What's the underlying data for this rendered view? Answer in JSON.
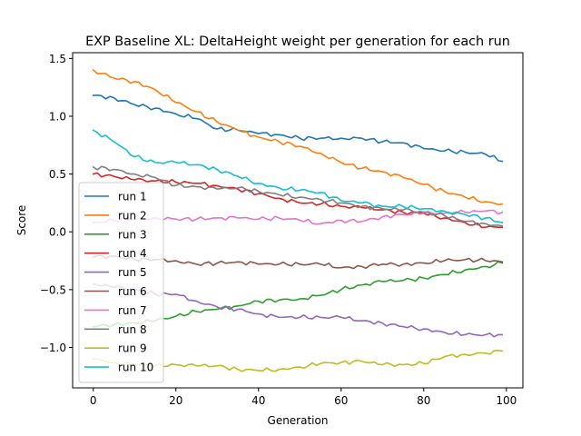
{
  "chart_data": {
    "type": "line",
    "title": "EXP Baseline XL: DeltaHeight weight per generation for each run",
    "xlabel": "Generation",
    "ylabel": "Score",
    "xlim": [
      -5,
      104
    ],
    "ylim": [
      -1.35,
      1.55
    ],
    "xticks": [
      0,
      20,
      40,
      60,
      80,
      100
    ],
    "yticks": [
      -1.0,
      -0.5,
      0.0,
      0.5,
      1.0,
      1.5
    ],
    "xtick_labels": [
      "0",
      "20",
      "40",
      "60",
      "80",
      "100"
    ],
    "ytick_labels": [
      "−1.0",
      "−0.5",
      "0.0",
      "0.5",
      "1.0",
      "1.5"
    ],
    "legend_position": "lower-left",
    "grid": false,
    "series": [
      {
        "name": "run 1",
        "color": "#1f77b4",
        "x": [
          0,
          5,
          10,
          15,
          20,
          25,
          30,
          35,
          40,
          45,
          50,
          55,
          60,
          65,
          70,
          75,
          80,
          85,
          90,
          95,
          99
        ],
        "y": [
          1.18,
          1.16,
          1.1,
          1.07,
          1.02,
          0.98,
          0.89,
          0.88,
          0.85,
          0.84,
          0.81,
          0.81,
          0.81,
          0.81,
          0.78,
          0.77,
          0.72,
          0.7,
          0.69,
          0.67,
          0.61
        ]
      },
      {
        "name": "run 2",
        "color": "#ff7f0e",
        "x": [
          0,
          5,
          10,
          15,
          20,
          25,
          30,
          35,
          40,
          45,
          50,
          55,
          60,
          65,
          70,
          75,
          80,
          85,
          90,
          95,
          99
        ],
        "y": [
          1.4,
          1.33,
          1.3,
          1.23,
          1.12,
          1.04,
          0.95,
          0.88,
          0.82,
          0.78,
          0.74,
          0.68,
          0.6,
          0.55,
          0.52,
          0.47,
          0.41,
          0.35,
          0.3,
          0.26,
          0.24
        ]
      },
      {
        "name": "run 3",
        "color": "#2ca02c",
        "x": [
          0,
          5,
          10,
          15,
          20,
          25,
          30,
          35,
          40,
          45,
          50,
          55,
          60,
          65,
          70,
          75,
          80,
          85,
          90,
          95,
          99
        ],
        "y": [
          -0.82,
          -0.8,
          -0.79,
          -0.77,
          -0.73,
          -0.69,
          -0.67,
          -0.64,
          -0.6,
          -0.59,
          -0.58,
          -0.55,
          -0.5,
          -0.46,
          -0.43,
          -0.42,
          -0.4,
          -0.37,
          -0.33,
          -0.3,
          -0.27
        ]
      },
      {
        "name": "run 4",
        "color": "#d62728",
        "x": [
          0,
          5,
          10,
          15,
          20,
          25,
          30,
          35,
          40,
          45,
          50,
          55,
          60,
          65,
          70,
          75,
          80,
          85,
          90,
          95,
          99
        ],
        "y": [
          0.5,
          0.48,
          0.45,
          0.44,
          0.43,
          0.42,
          0.4,
          0.37,
          0.33,
          0.29,
          0.25,
          0.24,
          0.22,
          0.21,
          0.19,
          0.17,
          0.16,
          0.12,
          0.08,
          0.04,
          0.04
        ]
      },
      {
        "name": "run 5",
        "color": "#9467bd",
        "x": [
          0,
          5,
          10,
          15,
          20,
          25,
          30,
          35,
          40,
          45,
          50,
          55,
          60,
          65,
          70,
          75,
          80,
          85,
          90,
          95,
          99
        ],
        "y": [
          -0.45,
          -0.48,
          -0.5,
          -0.54,
          -0.54,
          -0.6,
          -0.65,
          -0.67,
          -0.71,
          -0.74,
          -0.74,
          -0.74,
          -0.74,
          -0.77,
          -0.79,
          -0.82,
          -0.84,
          -0.87,
          -0.89,
          -0.89,
          -0.89
        ]
      },
      {
        "name": "run 6",
        "color": "#8c564b",
        "x": [
          0,
          5,
          10,
          15,
          20,
          25,
          30,
          35,
          40,
          45,
          50,
          55,
          60,
          65,
          70,
          75,
          80,
          85,
          90,
          95,
          99
        ],
        "y": [
          -0.22,
          -0.21,
          -0.24,
          -0.24,
          -0.25,
          -0.28,
          -0.27,
          -0.26,
          -0.28,
          -0.28,
          -0.28,
          -0.28,
          -0.31,
          -0.3,
          -0.28,
          -0.28,
          -0.27,
          -0.25,
          -0.24,
          -0.25,
          -0.26
        ]
      },
      {
        "name": "run 7",
        "color": "#e377c2",
        "x": [
          0,
          5,
          10,
          15,
          20,
          25,
          30,
          35,
          40,
          45,
          50,
          55,
          60,
          65,
          70,
          75,
          80,
          85,
          90,
          95,
          99
        ],
        "y": [
          0.08,
          0.1,
          0.11,
          0.12,
          0.11,
          0.11,
          0.12,
          0.12,
          0.11,
          0.12,
          0.1,
          0.07,
          0.1,
          0.09,
          0.13,
          0.15,
          0.16,
          0.16,
          0.17,
          0.18,
          0.17
        ]
      },
      {
        "name": "run 8",
        "color": "#7f7f7f",
        "x": [
          0,
          5,
          10,
          15,
          20,
          25,
          30,
          35,
          40,
          45,
          50,
          55,
          60,
          65,
          70,
          75,
          80,
          85,
          90,
          95,
          99
        ],
        "y": [
          0.56,
          0.54,
          0.5,
          0.47,
          0.4,
          0.39,
          0.37,
          0.38,
          0.35,
          0.32,
          0.3,
          0.28,
          0.25,
          0.22,
          0.2,
          0.19,
          0.17,
          0.14,
          0.09,
          0.07,
          0.05
        ]
      },
      {
        "name": "run 9",
        "color": "#bcbd22",
        "x": [
          0,
          5,
          10,
          15,
          20,
          25,
          30,
          35,
          40,
          45,
          50,
          55,
          60,
          65,
          70,
          75,
          80,
          85,
          90,
          95,
          99
        ],
        "y": [
          -1.1,
          -1.13,
          -1.15,
          -1.16,
          -1.15,
          -1.16,
          -1.16,
          -1.19,
          -1.2,
          -1.19,
          -1.17,
          -1.14,
          -1.13,
          -1.12,
          -1.15,
          -1.15,
          -1.14,
          -1.08,
          -1.06,
          -1.05,
          -1.03
        ]
      },
      {
        "name": "run 10",
        "color": "#17becf",
        "x": [
          0,
          5,
          10,
          15,
          20,
          25,
          30,
          35,
          40,
          45,
          50,
          55,
          60,
          65,
          70,
          75,
          80,
          85,
          90,
          95,
          99
        ],
        "y": [
          0.88,
          0.78,
          0.65,
          0.6,
          0.6,
          0.58,
          0.54,
          0.48,
          0.42,
          0.38,
          0.36,
          0.34,
          0.27,
          0.25,
          0.22,
          0.22,
          0.2,
          0.18,
          0.15,
          0.12,
          0.08
        ]
      }
    ]
  }
}
